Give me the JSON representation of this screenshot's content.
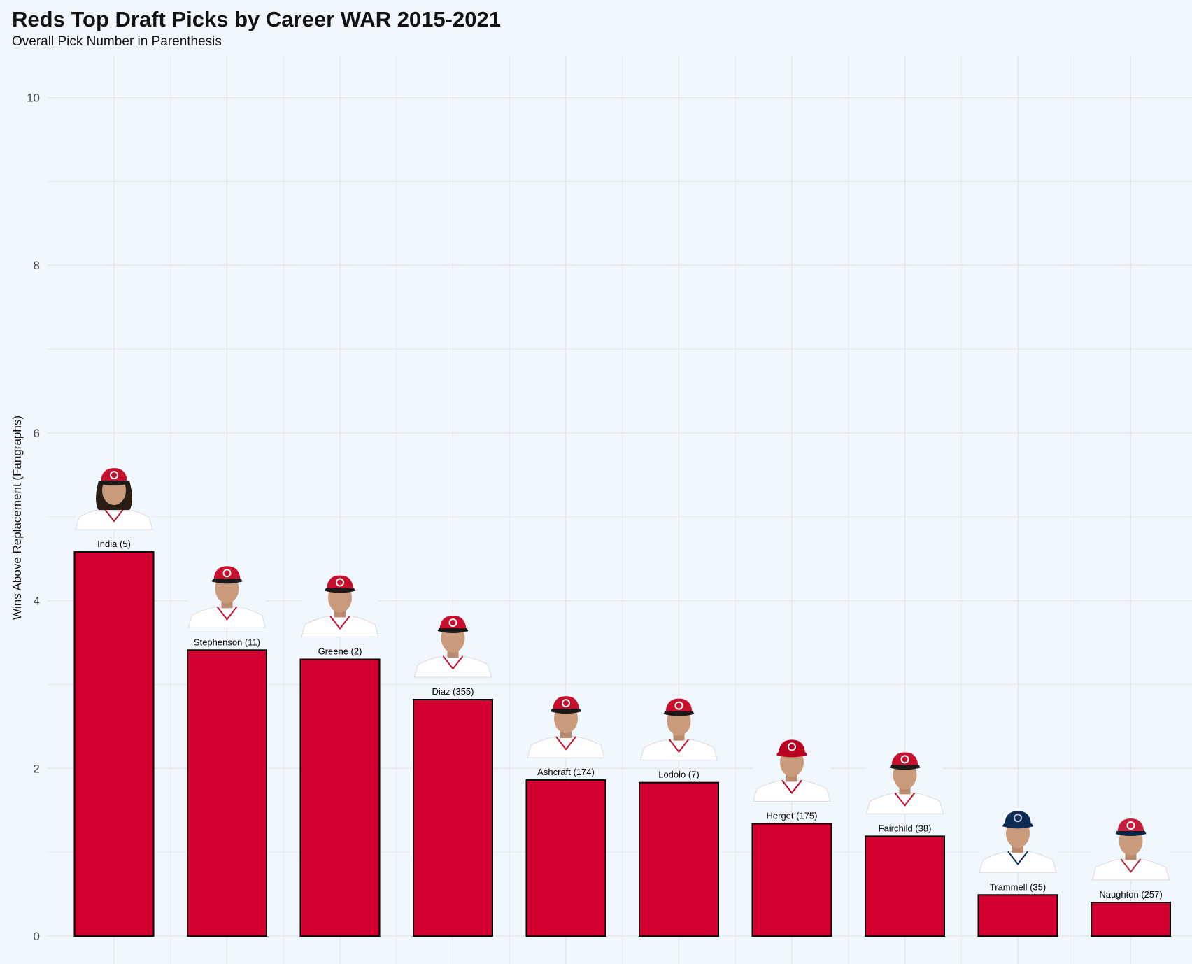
{
  "chart_data": {
    "type": "bar",
    "title": "Reds Top Draft Picks by Career WAR 2015-2021",
    "subtitle": "Overall Pick Number in Parenthesis",
    "xlabel": "",
    "ylabel": "Wins Above Replacement (Fangraphs)",
    "ylim": [
      0,
      10.5
    ],
    "yticks": [
      0,
      2,
      4,
      6,
      8,
      10
    ],
    "grid": true,
    "categories": [
      "India (5)",
      "Stephenson (11)",
      "Greene (2)",
      "Diaz (355)",
      "Ashcraft (174)",
      "Lodolo (7)",
      "Herget (175)",
      "Fairchild (38)",
      "Trammell (35)",
      "Naughton (257)"
    ],
    "values": [
      4.58,
      3.41,
      3.3,
      2.82,
      1.86,
      1.83,
      1.34,
      1.19,
      0.49,
      0.4
    ],
    "player_images": [
      {
        "cap": "reds",
        "hair": "long"
      },
      {
        "cap": "reds",
        "hair": "short"
      },
      {
        "cap": "reds",
        "hair": "short"
      },
      {
        "cap": "reds",
        "hair": "short"
      },
      {
        "cap": "reds",
        "hair": "short"
      },
      {
        "cap": "reds",
        "hair": "short"
      },
      {
        "cap": "angels",
        "hair": "short"
      },
      {
        "cap": "reds",
        "hair": "short"
      },
      {
        "cap": "mariners",
        "hair": "short"
      },
      {
        "cap": "cardinals",
        "hair": "short"
      }
    ],
    "colors": {
      "bar_fill": "#d50032",
      "bar_stroke": "#000000",
      "background": "#f0f7ff",
      "grid": "#e6e6e0",
      "tick_text": "#4d4d4d"
    }
  }
}
